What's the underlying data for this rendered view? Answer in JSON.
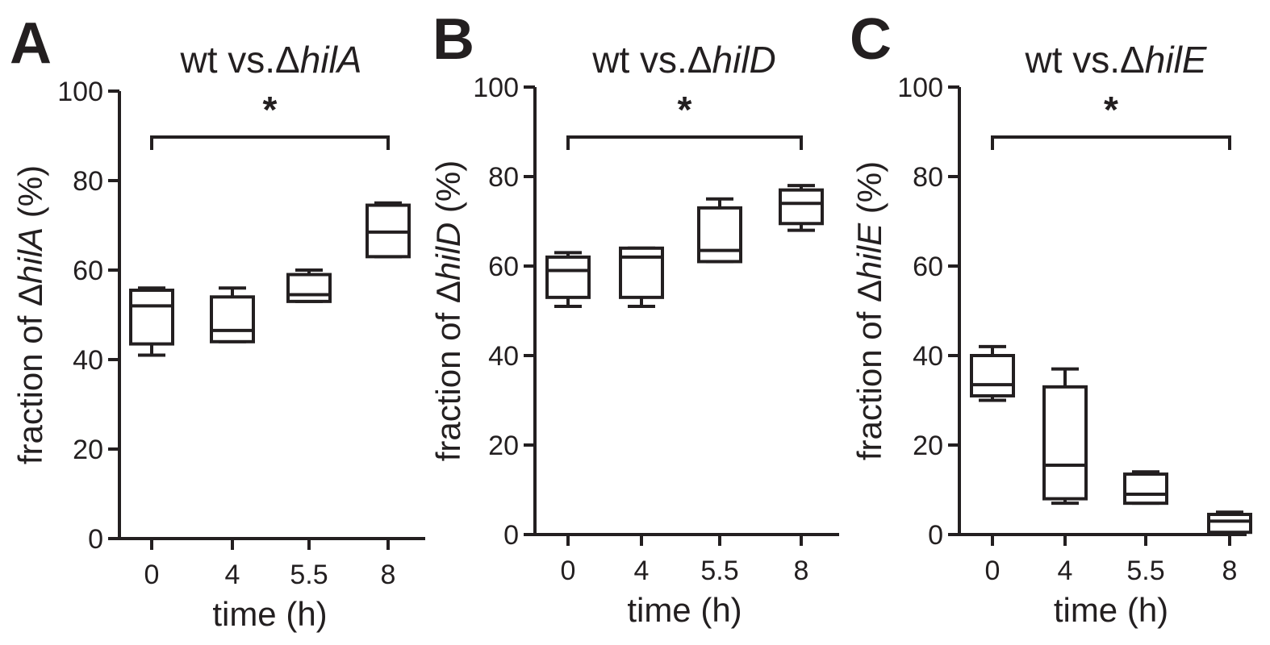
{
  "chart_data": [
    {
      "type": "box",
      "panel_label": "A",
      "title": "wt vs.ΔhilA",
      "title_prefix": "wt vs.",
      "title_delta": "Δ",
      "title_gene": "hilA",
      "xlabel": "time (h)",
      "ylabel_prefix": "fraction of ",
      "ylabel_delta": "Δ",
      "ylabel_gene": "hilA",
      "ylabel_suffix": " (%)",
      "ylim": [
        0,
        100
      ],
      "yticks": [
        "0",
        "20",
        "40",
        "60",
        "80",
        "100"
      ],
      "categories": [
        "0",
        "4",
        "5.5",
        "8"
      ],
      "boxes": [
        {
          "min": 41,
          "q1": 43.5,
          "median": 52,
          "q3": 55.5,
          "max": 56
        },
        {
          "min": 44,
          "q1": 44,
          "median": 46.5,
          "q3": 54,
          "max": 56
        },
        {
          "min": 53,
          "q1": 53,
          "median": 54.5,
          "q3": 59,
          "max": 60
        },
        {
          "min": 63,
          "q1": 63,
          "median": 68.5,
          "q3": 74.5,
          "max": 75
        }
      ],
      "significance": "*"
    },
    {
      "type": "box",
      "panel_label": "B",
      "title": "wt vs.ΔhilD",
      "title_prefix": "wt vs.",
      "title_delta": "Δ",
      "title_gene": "hilD",
      "xlabel": "time (h)",
      "ylabel_prefix": "fraction of ",
      "ylabel_delta": "Δ",
      "ylabel_gene": "hilD",
      "ylabel_suffix": " (%)",
      "ylim": [
        0,
        100
      ],
      "yticks": [
        "0",
        "20",
        "40",
        "60",
        "80",
        "100"
      ],
      "categories": [
        "0",
        "4",
        "5.5",
        "8"
      ],
      "boxes": [
        {
          "min": 51,
          "q1": 53,
          "median": 59,
          "q3": 62,
          "max": 63
        },
        {
          "min": 51,
          "q1": 53,
          "median": 62,
          "q3": 64,
          "max": 64
        },
        {
          "min": 61,
          "q1": 61,
          "median": 63.5,
          "q3": 73,
          "max": 75
        },
        {
          "min": 68,
          "q1": 69.5,
          "median": 74,
          "q3": 77,
          "max": 78
        }
      ],
      "significance": "*"
    },
    {
      "type": "box",
      "panel_label": "C",
      "title": "wt vs.ΔhilE",
      "title_prefix": "wt vs.",
      "title_delta": "Δ",
      "title_gene": "hilE",
      "xlabel": "time (h)",
      "ylabel_prefix": "fraction of ",
      "ylabel_delta": "Δ",
      "ylabel_gene": "hilE",
      "ylabel_suffix": " (%)",
      "ylim": [
        0,
        100
      ],
      "yticks": [
        "0",
        "20",
        "40",
        "60",
        "80",
        "100"
      ],
      "categories": [
        "0",
        "4",
        "5.5",
        "8"
      ],
      "boxes": [
        {
          "min": 30,
          "q1": 31,
          "median": 33.5,
          "q3": 40,
          "max": 42
        },
        {
          "min": 7,
          "q1": 8,
          "median": 15.5,
          "q3": 33,
          "max": 37
        },
        {
          "min": 7,
          "q1": 7,
          "median": 9,
          "q3": 13.5,
          "max": 14
        },
        {
          "min": 0,
          "q1": 0.5,
          "median": 3,
          "q3": 4.5,
          "max": 5
        }
      ],
      "significance": "*"
    }
  ]
}
